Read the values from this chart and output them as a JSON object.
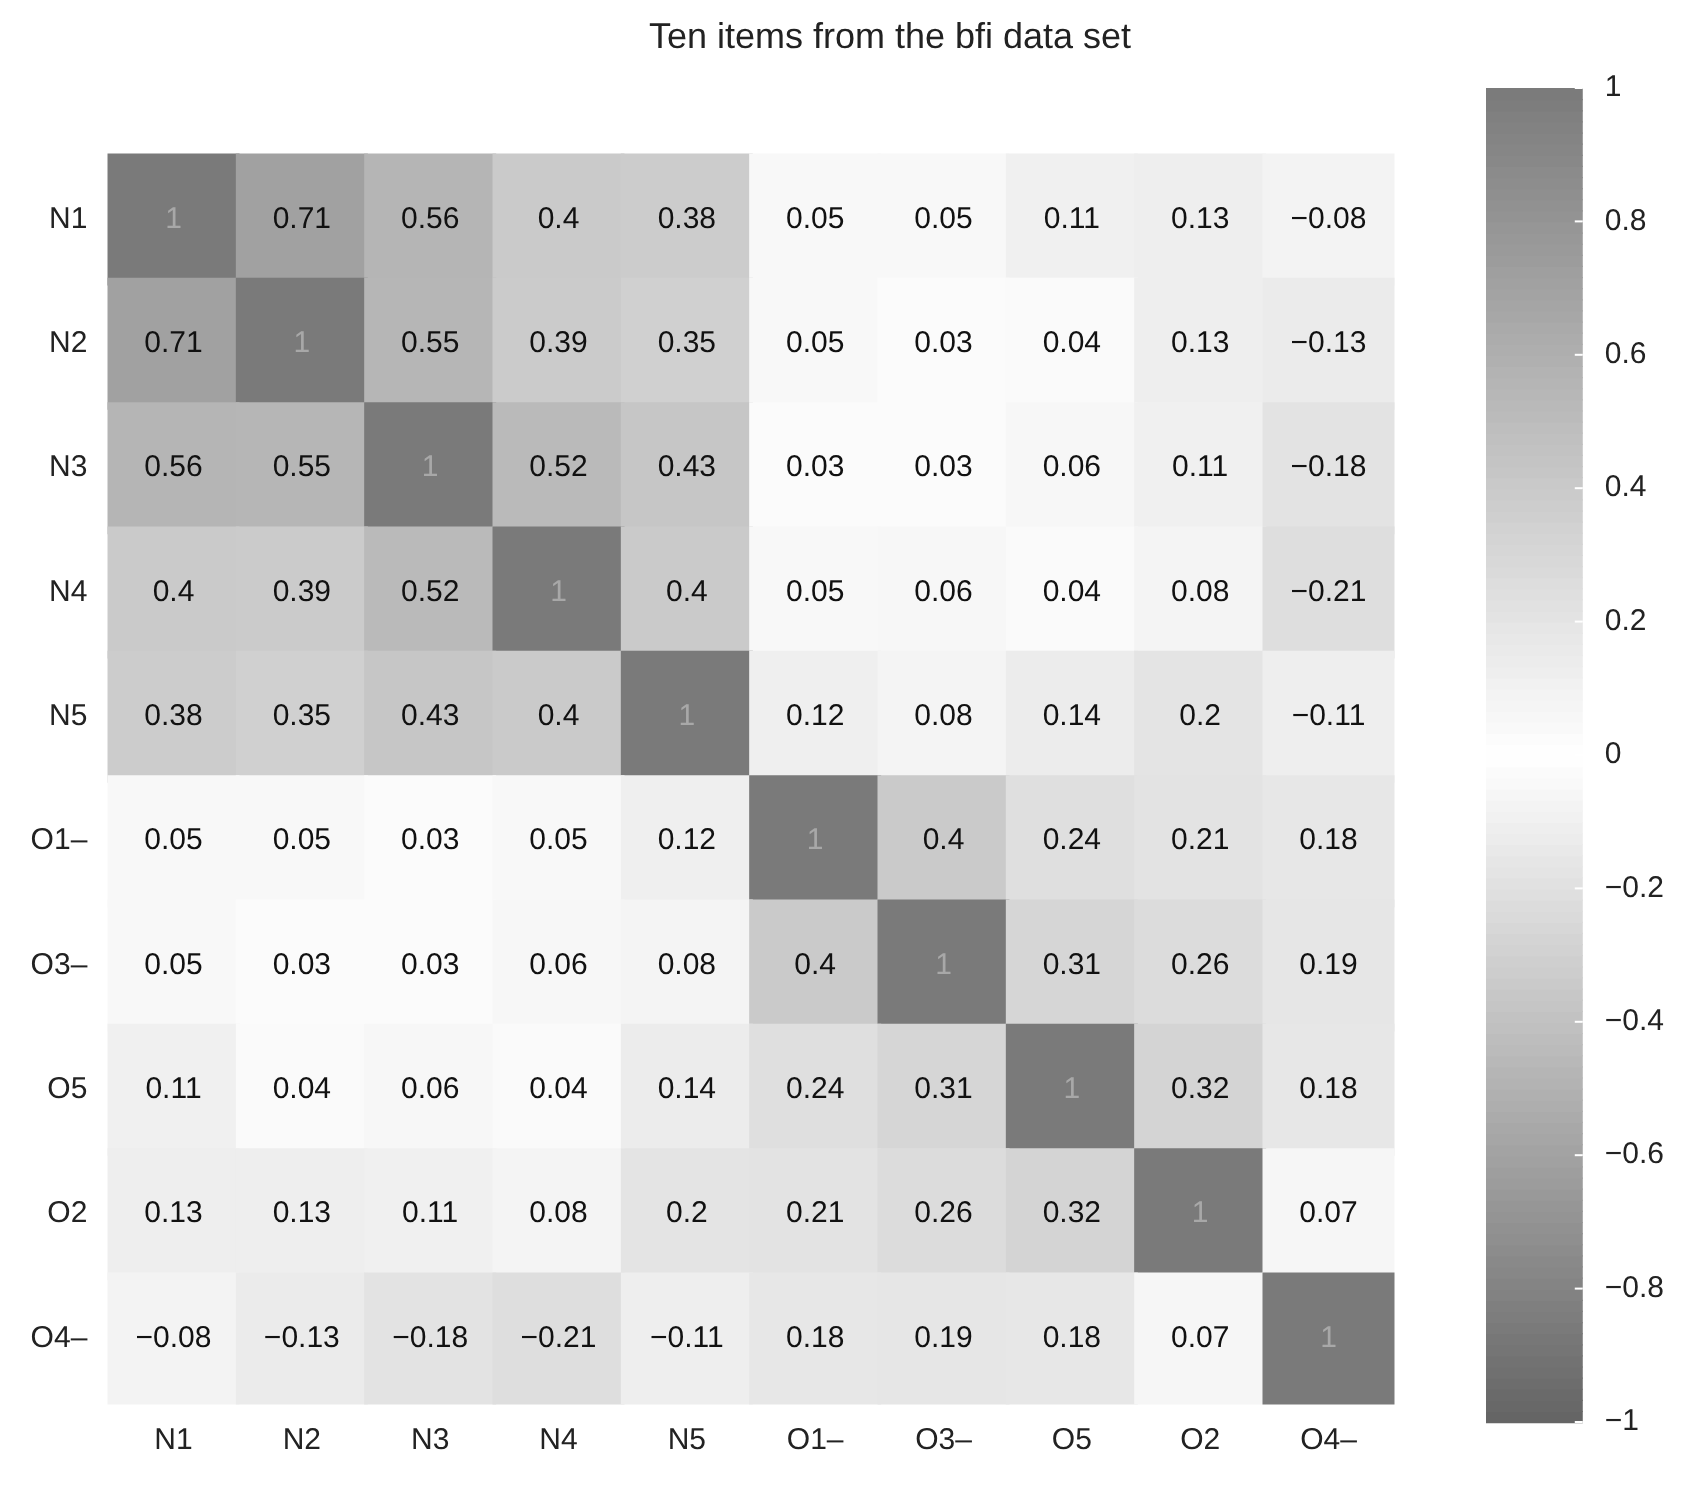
{
  "chart_data": {
    "type": "heatmap",
    "title": "Ten items from the bfi data set",
    "categories": [
      "N1",
      "N2",
      "N3",
      "N4",
      "N5",
      "O1–",
      "O3–",
      "O5",
      "O2",
      "O4–"
    ],
    "y_categories": [
      "N1",
      "N2",
      "N3",
      "N4",
      "N5",
      "O1–",
      "O3–",
      "O5",
      "O2",
      "O4–"
    ],
    "cells": [
      [
        1,
        0.71,
        0.56,
        0.4,
        0.38,
        0.05,
        0.05,
        0.11,
        0.13,
        -0.08
      ],
      [
        0.71,
        1,
        0.55,
        0.39,
        0.35,
        0.05,
        0.03,
        0.04,
        0.13,
        -0.13
      ],
      [
        0.56,
        0.55,
        1,
        0.52,
        0.43,
        0.03,
        0.03,
        0.06,
        0.11,
        -0.18
      ],
      [
        0.4,
        0.39,
        0.52,
        1,
        0.4,
        0.05,
        0.06,
        0.04,
        0.08,
        -0.21
      ],
      [
        0.38,
        0.35,
        0.43,
        0.4,
        1,
        0.12,
        0.08,
        0.14,
        0.2,
        -0.11
      ],
      [
        0.05,
        0.05,
        0.03,
        0.05,
        0.12,
        1,
        0.4,
        0.24,
        0.21,
        0.18
      ],
      [
        0.05,
        0.03,
        0.03,
        0.06,
        0.08,
        0.4,
        1,
        0.31,
        0.26,
        0.19
      ],
      [
        0.11,
        0.04,
        0.06,
        0.04,
        0.14,
        0.24,
        0.31,
        1,
        0.32,
        0.18
      ],
      [
        0.13,
        0.13,
        0.11,
        0.08,
        0.2,
        0.21,
        0.26,
        0.32,
        1,
        0.07
      ],
      [
        -0.08,
        -0.13,
        -0.18,
        -0.21,
        -0.11,
        0.18,
        0.19,
        0.18,
        0.07,
        1
      ]
    ],
    "cell_labels": [
      [
        "1",
        "0.71",
        "0.56",
        "0.4",
        "0.38",
        "0.05",
        "0.05",
        "0.11",
        "0.13",
        "−0.08"
      ],
      [
        "0.71",
        "1",
        "0.55",
        "0.39",
        "0.35",
        "0.05",
        "0.03",
        "0.04",
        "0.13",
        "−0.13"
      ],
      [
        "0.56",
        "0.55",
        "1",
        "0.52",
        "0.43",
        "0.03",
        "0.03",
        "0.06",
        "0.11",
        "−0.18"
      ],
      [
        "0.4",
        "0.39",
        "0.52",
        "1",
        "0.4",
        "0.05",
        "0.06",
        "0.04",
        "0.08",
        "−0.21"
      ],
      [
        "0.38",
        "0.35",
        "0.43",
        "0.4",
        "1",
        "0.12",
        "0.08",
        "0.14",
        "0.2",
        "−0.11"
      ],
      [
        "0.05",
        "0.05",
        "0.03",
        "0.05",
        "0.12",
        "1",
        "0.4",
        "0.24",
        "0.21",
        "0.18"
      ],
      [
        "0.05",
        "0.03",
        "0.03",
        "0.06",
        "0.08",
        "0.4",
        "1",
        "0.31",
        "0.26",
        "0.19"
      ],
      [
        "0.11",
        "0.04",
        "0.06",
        "0.04",
        "0.14",
        "0.24",
        "0.31",
        "1",
        "0.32",
        "0.18"
      ],
      [
        "0.13",
        "0.13",
        "0.11",
        "0.08",
        "0.2",
        "0.21",
        "0.26",
        "0.32",
        "1",
        "0.07"
      ],
      [
        "−0.08",
        "−0.13",
        "−0.18",
        "−0.21",
        "−0.11",
        "0.18",
        "0.19",
        "0.18",
        "0.07",
        "1"
      ]
    ],
    "clim": [
      -1,
      1
    ],
    "cticks": [
      {
        "value": -1,
        "label": "−1"
      },
      {
        "value": -0.8,
        "label": "−0.8"
      },
      {
        "value": -0.6,
        "label": "−0.6"
      },
      {
        "value": -0.4,
        "label": "−0.4"
      },
      {
        "value": -0.2,
        "label": "−0.2"
      },
      0,
      0.2,
      0.4,
      0.6,
      0.8,
      1
    ]
  }
}
